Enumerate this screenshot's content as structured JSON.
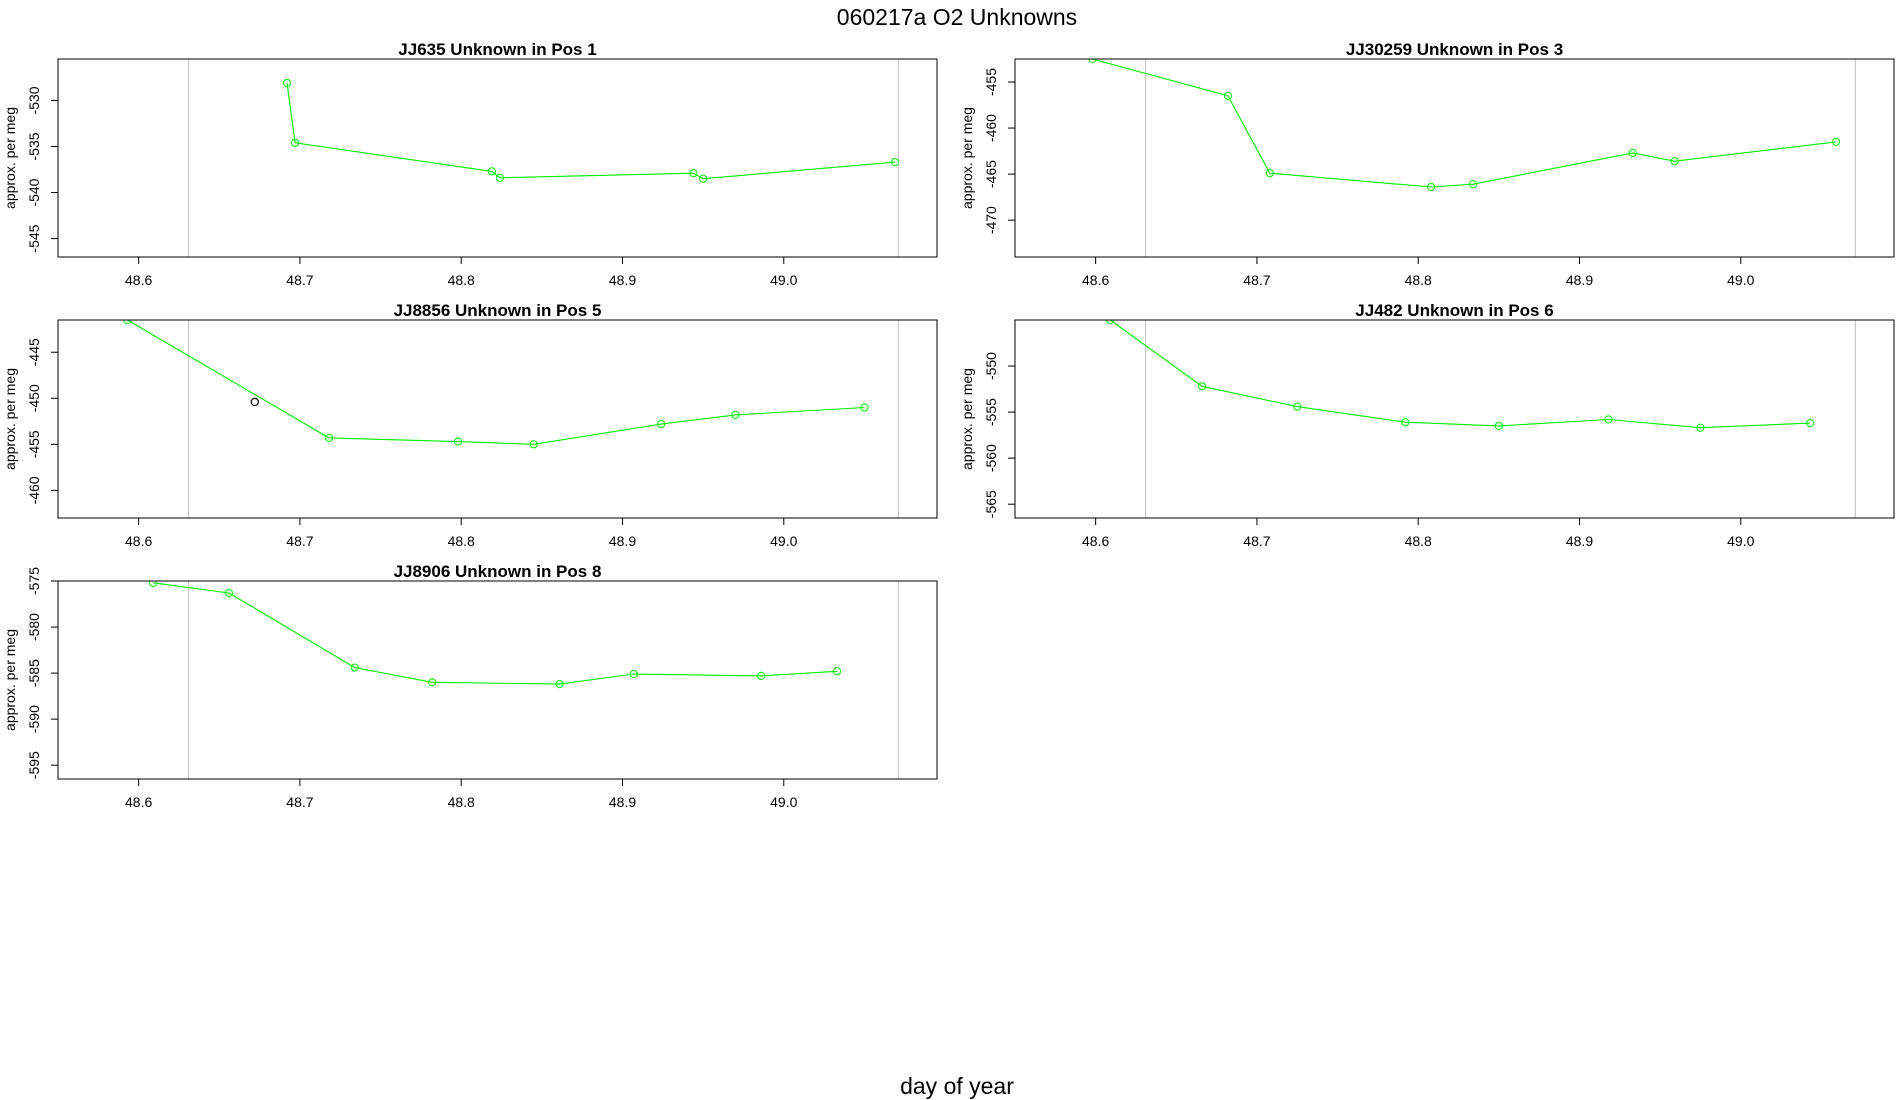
{
  "title": "060217a  O2 Unknowns",
  "xlabel": "day of year",
  "colors": {
    "series": "#00ee00",
    "highlight": "#000000",
    "frame": "#000000",
    "vline": "#bebebe"
  },
  "chart_data": [
    {
      "type": "line",
      "title": "JJ635    Unknown in Pos 1",
      "ylabel": "approx. per meg",
      "xlim": [
        48.55,
        49.095
      ],
      "ylim": [
        -547,
        -525.5
      ],
      "xticks": [
        48.6,
        48.7,
        48.8,
        48.9,
        49.0
      ],
      "xtick_labels": [
        "48.6",
        "48.7",
        "48.8",
        "48.9",
        "49.0"
      ],
      "yticks": [
        -530,
        -535,
        -540,
        -545
      ],
      "ytick_labels": [
        "-530",
        "-535",
        "-540",
        "-545"
      ],
      "vlines": [
        48.631,
        49.071
      ],
      "x": [
        48.692,
        48.697,
        48.819,
        48.824,
        48.944,
        48.95,
        49.069
      ],
      "y": [
        -528.1,
        -534.6,
        -537.7,
        -538.4,
        -537.9,
        -538.5,
        -536.7
      ],
      "highlight": null
    },
    {
      "type": "line",
      "title": "JJ30259    Unknown in Pos 3",
      "ylabel": "approx. per meg",
      "xlim": [
        48.55,
        49.095
      ],
      "ylim": [
        -474,
        -452.5
      ],
      "xticks": [
        48.6,
        48.7,
        48.8,
        48.9,
        49.0
      ],
      "xtick_labels": [
        "48.6",
        "48.7",
        "48.8",
        "48.9",
        "49.0"
      ],
      "yticks": [
        -455,
        -460,
        -465,
        -470
      ],
      "ytick_labels": [
        "-455",
        "-460",
        "-465",
        "-470"
      ],
      "vlines": [
        48.631,
        49.071
      ],
      "x": [
        48.598,
        48.682,
        48.708,
        48.808,
        48.834,
        48.933,
        48.959,
        49.059
      ],
      "y": [
        -452.5,
        -456.5,
        -464.9,
        -466.4,
        -466.1,
        -462.7,
        -463.6,
        -461.5
      ],
      "highlight": null
    },
    {
      "type": "line",
      "title": "JJ8856    Unknown in Pos 5",
      "ylabel": "approx. per meg",
      "xlim": [
        48.55,
        49.095
      ],
      "ylim": [
        -463,
        -441.5
      ],
      "xticks": [
        48.6,
        48.7,
        48.8,
        48.9,
        49.0
      ],
      "xtick_labels": [
        "48.6",
        "48.7",
        "48.8",
        "48.9",
        "49.0"
      ],
      "yticks": [
        -445,
        -450,
        -455,
        -460
      ],
      "ytick_labels": [
        "-445",
        "-450",
        "-455",
        "-460"
      ],
      "vlines": [
        48.631,
        49.071
      ],
      "x": [
        48.593,
        48.718,
        48.798,
        48.845,
        48.924,
        48.97,
        49.05
      ],
      "y": [
        -441.5,
        -454.3,
        -454.7,
        -455.0,
        -452.8,
        -451.8,
        -451.0
      ],
      "highlight": {
        "x": 48.672,
        "y": -450.4
      }
    },
    {
      "type": "line",
      "title": "JJ482    Unknown in Pos 6",
      "ylabel": "approx. per meg",
      "xlim": [
        48.55,
        49.095
      ],
      "ylim": [
        -566.5,
        -545
      ],
      "xticks": [
        48.6,
        48.7,
        48.8,
        48.9,
        49.0
      ],
      "xtick_labels": [
        "48.6",
        "48.7",
        "48.8",
        "48.9",
        "49.0"
      ],
      "yticks": [
        -550,
        -555,
        -560,
        -565
      ],
      "ytick_labels": [
        "-550",
        "-555",
        "-560",
        "-565"
      ],
      "vlines": [
        48.631,
        49.071
      ],
      "x": [
        48.609,
        48.666,
        48.725,
        48.792,
        48.85,
        48.918,
        48.975,
        49.043
      ],
      "y": [
        -545.0,
        -552.2,
        -554.4,
        -556.1,
        -556.5,
        -555.8,
        -556.7,
        -556.2
      ],
      "highlight": null
    },
    {
      "type": "line",
      "title": "JJ8906    Unknown in Pos 8",
      "ylabel": "approx. per meg",
      "xlim": [
        48.55,
        49.095
      ],
      "ylim": [
        -596.5,
        -575
      ],
      "xticks": [
        48.6,
        48.7,
        48.8,
        48.9,
        49.0
      ],
      "xtick_labels": [
        "48.6",
        "48.7",
        "48.8",
        "48.9",
        "49.0"
      ],
      "yticks": [
        -575,
        -580,
        -585,
        -590,
        -595
      ],
      "ytick_labels": [
        "-575",
        "-580",
        "-585",
        "-590",
        "-595"
      ],
      "vlines": [
        48.631,
        49.071
      ],
      "x": [
        48.609,
        48.656,
        48.734,
        48.782,
        48.861,
        48.907,
        48.986,
        49.033
      ],
      "y": [
        -575.2,
        -576.3,
        -584.4,
        -586.0,
        -586.2,
        -585.1,
        -585.3,
        -584.8
      ],
      "highlight": null
    }
  ]
}
